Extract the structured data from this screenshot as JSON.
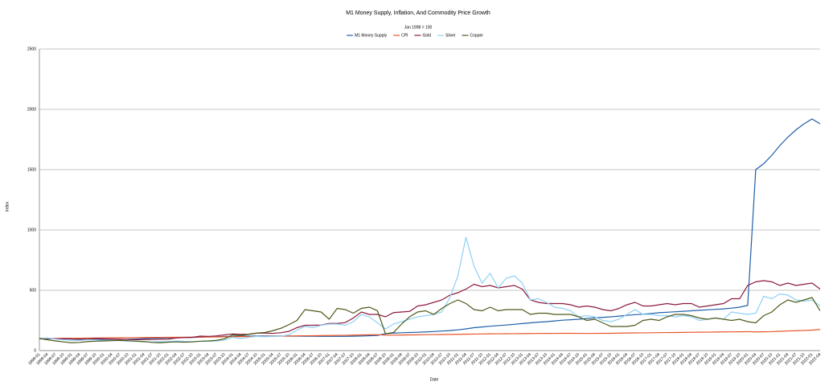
{
  "chart_data": {
    "type": "line",
    "title": "M1 Money Supply, Inflation, And Commodity Price Growth",
    "subtitle": "Jan 1998 = 100",
    "x_label": "Date",
    "y_label": "Index",
    "ylim": [
      0,
      2500
    ],
    "yticks": [
      0,
      500,
      1000,
      1500,
      2000,
      2500
    ],
    "grid": true,
    "legend": "top",
    "categories": [
      "1998-01",
      "1998-04",
      "1998-07",
      "1998-10",
      "1999-01",
      "1999-04",
      "1999-07",
      "1999-10",
      "2000-01",
      "2000-04",
      "2000-07",
      "2000-10",
      "2001-01",
      "2001-04",
      "2001-07",
      "2001-10",
      "2002-01",
      "2002-04",
      "2002-07",
      "2002-10",
      "2003-01",
      "2003-04",
      "2003-07",
      "2003-10",
      "2004-01",
      "2004-04",
      "2004-07",
      "2004-10",
      "2005-01",
      "2005-04",
      "2005-07",
      "2005-10",
      "2006-01",
      "2006-04",
      "2006-07",
      "2006-10",
      "2007-01",
      "2007-04",
      "2007-07",
      "2007-10",
      "2008-01",
      "2008-04",
      "2008-07",
      "2008-10",
      "2009-01",
      "2009-04",
      "2009-07",
      "2009-10",
      "2010-01",
      "2010-04",
      "2010-07",
      "2010-10",
      "2011-01",
      "2011-04",
      "2011-07",
      "2011-10",
      "2012-01",
      "2012-04",
      "2012-07",
      "2012-10",
      "2013-01",
      "2013-04",
      "2013-07",
      "2013-10",
      "2014-01",
      "2014-04",
      "2014-07",
      "2014-10",
      "2015-01",
      "2015-04",
      "2015-07",
      "2015-10",
      "2016-01",
      "2016-04",
      "2016-07",
      "2016-10",
      "2017-01",
      "2017-04",
      "2017-07",
      "2017-10",
      "2018-01",
      "2018-04",
      "2018-07",
      "2018-10",
      "2019-01",
      "2019-04",
      "2019-07",
      "2019-10",
      "2020-01",
      "2020-04",
      "2020-07",
      "2020-10",
      "2021-01",
      "2021-04",
      "2021-07",
      "2021-10",
      "2022-01",
      "2022-04"
    ],
    "series": [
      {
        "name": "M1 Money Supply",
        "color": "#1f5fa8",
        "values": [
          100,
          99,
          98,
          97,
          96,
          96,
          95,
          95,
          94,
          94,
          93,
          94,
          96,
          99,
          102,
          105,
          106,
          107,
          108,
          109,
          111,
          113,
          115,
          117,
          118,
          119,
          120,
          121,
          121,
          121,
          121,
          120,
          120,
          119,
          119,
          118,
          118,
          118,
          118,
          119,
          121,
          123,
          126,
          140,
          145,
          148,
          150,
          152,
          155,
          158,
          162,
          166,
          172,
          180,
          190,
          196,
          202,
          207,
          212,
          218,
          224,
          230,
          236,
          240,
          246,
          252,
          256,
          260,
          266,
          272,
          276,
          280,
          286,
          292,
          298,
          302,
          308,
          314,
          318,
          322,
          326,
          330,
          334,
          338,
          342,
          346,
          352,
          360,
          375,
          1500,
          1550,
          1620,
          1700,
          1770,
          1830,
          1880,
          1920,
          1880
        ]
      },
      {
        "name": "CPI",
        "color": "#e8552a",
        "values": [
          100,
          100.5,
          101,
          101.5,
          102,
          102.8,
          103.5,
          104.2,
          105,
          105.8,
          106.5,
          107.2,
          108,
          108.5,
          109,
          109.5,
          110,
          110.5,
          111,
          111.5,
          112,
          112.8,
          113.5,
          114.2,
          115,
          115.8,
          116.5,
          117.2,
          118,
          119,
          120,
          121,
          122,
          122.8,
          123.5,
          124.2,
          125,
          126,
          127,
          128.5,
          130,
          131,
          132,
          128,
          128,
          129,
          130,
          131,
          132,
          132.8,
          133.5,
          134.2,
          135,
          136,
          137,
          138,
          139,
          139.5,
          140,
          140.5,
          141,
          141.5,
          142,
          142.5,
          143,
          143.5,
          143.5,
          143,
          142,
          143,
          143.5,
          143.5,
          145,
          146,
          146.5,
          147,
          148,
          148.8,
          149.5,
          150.2,
          151,
          152,
          152.5,
          153,
          154,
          155,
          155.5,
          156,
          157,
          155,
          156,
          157,
          160,
          163,
          165,
          167,
          170,
          175
        ]
      },
      {
        "name": "Gold",
        "color": "#8b1a3c",
        "values": [
          100,
          100,
          98,
          99,
          97,
          92,
          95,
          100,
          98,
          96,
          94,
          92,
          90,
          92,
          92,
          94,
          95,
          105,
          108,
          110,
          120,
          118,
          122,
          130,
          138,
          135,
          136,
          145,
          145,
          143,
          148,
          160,
          190,
          210,
          210,
          212,
          225,
          225,
          232,
          270,
          320,
          300,
          300,
          280,
          315,
          320,
          325,
          370,
          380,
          400,
          420,
          460,
          480,
          510,
          550,
          530,
          540,
          520,
          530,
          540,
          510,
          420,
          400,
          390,
          390,
          390,
          380,
          360,
          370,
          360,
          340,
          330,
          350,
          380,
          400,
          370,
          370,
          380,
          390,
          380,
          390,
          390,
          360,
          370,
          380,
          390,
          430,
          430,
          540,
          570,
          580,
          570,
          540,
          560,
          540,
          550,
          560,
          510
        ]
      },
      {
        "name": "Silver",
        "color": "#8fd0f5",
        "values": [
          100,
          105,
          95,
          90,
          85,
          85,
          90,
          88,
          85,
          85,
          82,
          78,
          77,
          72,
          72,
          74,
          75,
          80,
          76,
          75,
          77,
          77,
          80,
          87,
          110,
          100,
          110,
          118,
          115,
          118,
          120,
          130,
          170,
          200,
          190,
          210,
          220,
          220,
          210,
          240,
          300,
          280,
          230,
          180,
          220,
          240,
          260,
          280,
          290,
          300,
          320,
          440,
          620,
          940,
          700,
          560,
          640,
          520,
          600,
          620,
          560,
          420,
          430,
          400,
          360,
          350,
          330,
          280,
          290,
          280,
          250,
          240,
          260,
          300,
          340,
          300,
          300,
          290,
          290,
          280,
          290,
          280,
          250,
          260,
          270,
          260,
          320,
          310,
          300,
          310,
          450,
          430,
          470,
          460,
          420,
          410,
          420,
          370
        ]
      },
      {
        "name": "Copper",
        "color": "#4d5a1a",
        "values": [
          100,
          90,
          80,
          72,
          65,
          68,
          75,
          78,
          80,
          82,
          85,
          82,
          78,
          75,
          68,
          65,
          70,
          72,
          70,
          72,
          78,
          80,
          85,
          98,
          130,
          125,
          135,
          145,
          150,
          165,
          185,
          215,
          250,
          340,
          330,
          320,
          260,
          350,
          340,
          310,
          350,
          360,
          330,
          140,
          150,
          220,
          280,
          320,
          330,
          300,
          350,
          390,
          420,
          390,
          340,
          330,
          360,
          330,
          340,
          340,
          340,
          300,
          310,
          310,
          300,
          300,
          300,
          280,
          250,
          260,
          230,
          200,
          200,
          200,
          210,
          250,
          260,
          250,
          280,
          300,
          300,
          290,
          270,
          260,
          270,
          260,
          250,
          260,
          240,
          230,
          290,
          320,
          380,
          420,
          400,
          420,
          440,
          330
        ]
      }
    ]
  }
}
